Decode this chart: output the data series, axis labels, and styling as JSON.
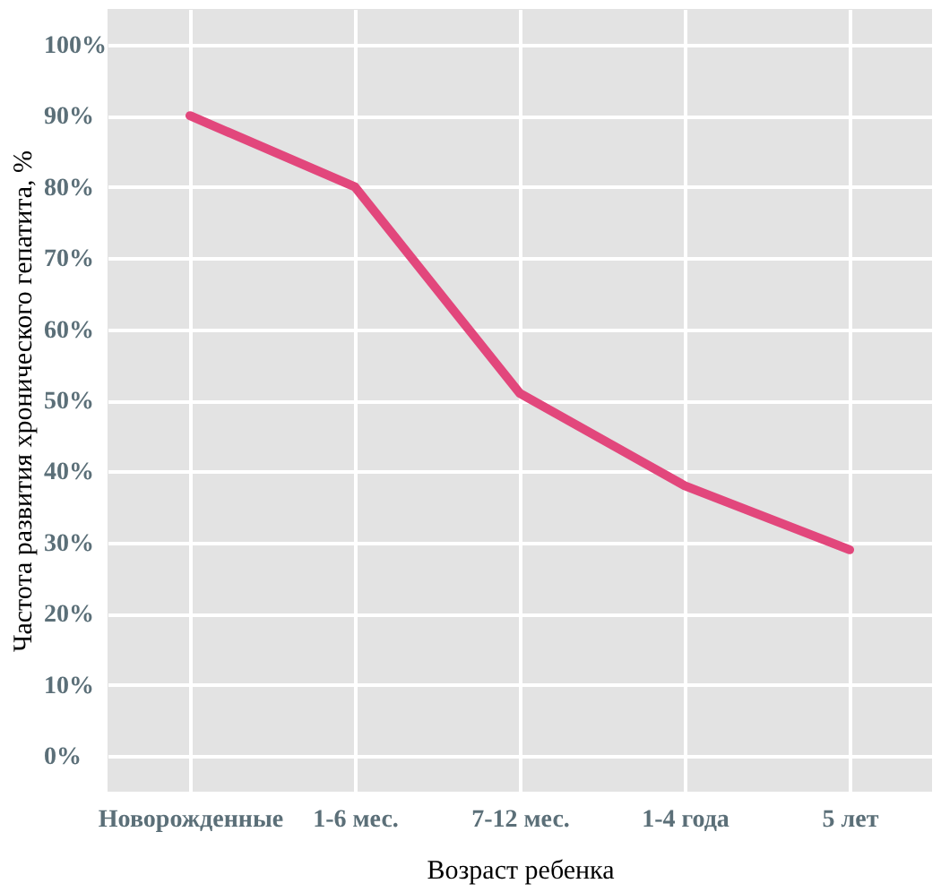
{
  "chart_data": {
    "type": "line",
    "xlabel": "Возраст ребенка",
    "ylabel": "Частота развития хронического гепатита, %",
    "categories": [
      "Новорожденные",
      "1-6 мес.",
      "7-12 мес.",
      "1-4 года",
      "5 лет"
    ],
    "series": [
      {
        "color": "#e2477c",
        "values": [
          90,
          80,
          51,
          38,
          29
        ]
      }
    ],
    "ylim": [
      -5,
      105
    ],
    "yticks": [
      {
        "value": 0,
        "label": "0%"
      },
      {
        "value": 10,
        "label": "10%"
      },
      {
        "value": 20,
        "label": "20%"
      },
      {
        "value": 30,
        "label": "30%"
      },
      {
        "value": 40,
        "label": "40%"
      },
      {
        "value": 50,
        "label": "50%"
      },
      {
        "value": 60,
        "label": "60%"
      },
      {
        "value": 70,
        "label": "70%"
      },
      {
        "value": 80,
        "label": "80%"
      },
      {
        "value": 90,
        "label": "90%"
      },
      {
        "value": 100,
        "label": "100%"
      }
    ],
    "grid": true,
    "marker": "none",
    "line_style": "solid"
  }
}
